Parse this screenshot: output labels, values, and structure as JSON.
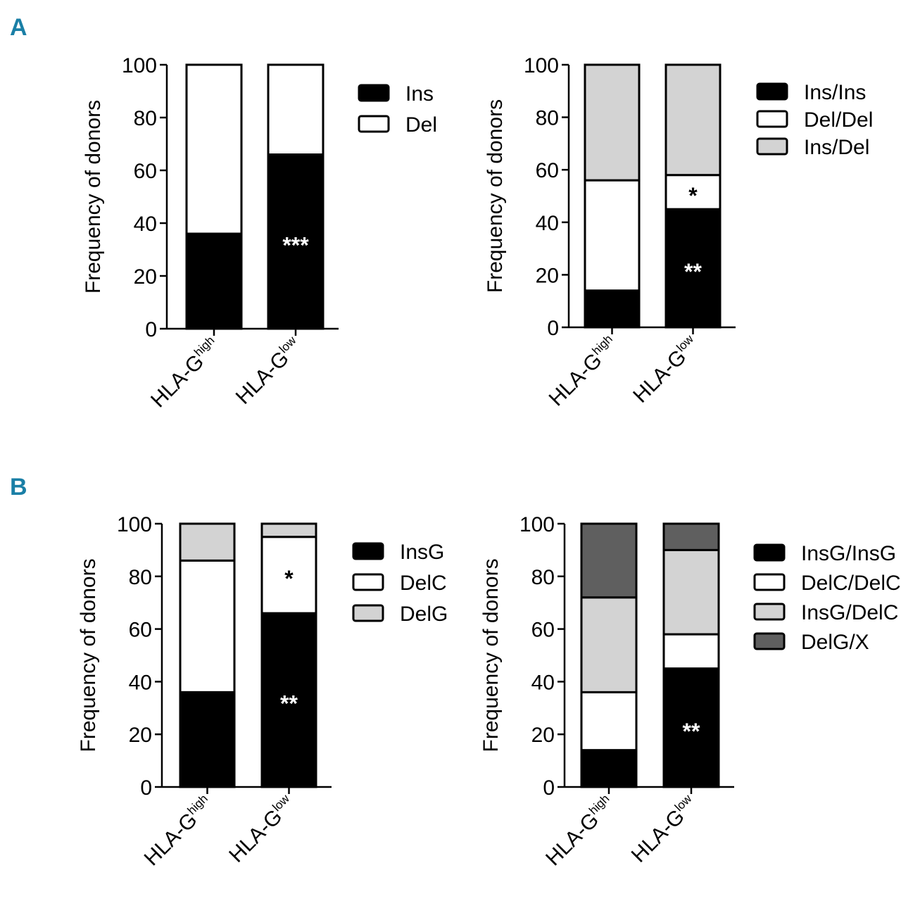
{
  "panels": [
    {
      "label": "A"
    },
    {
      "label": "B"
    }
  ],
  "colors": {
    "black": "#000000",
    "white": "#ffffff",
    "light_gray": "#d3d3d3",
    "dark_gray": "#5f5f5f",
    "panel_label": "#1a7fa6"
  },
  "chart_data": [
    {
      "type": "bar",
      "stacked": true,
      "panel": "A",
      "ylabel": "Frequency of donors",
      "ylim": [
        0,
        100
      ],
      "yticks": [
        0,
        20,
        40,
        60,
        80,
        100
      ],
      "categories": [
        {
          "base": "HLA-G",
          "sup": "high"
        },
        {
          "base": "HLA-G",
          "sup": "low"
        }
      ],
      "series": [
        {
          "name": "Ins",
          "color": "#000000",
          "values": [
            36,
            66
          ]
        },
        {
          "name": "Del",
          "color": "#ffffff",
          "values": [
            64,
            34
          ]
        }
      ],
      "legend_position": "right",
      "annotations": [
        {
          "category": 1,
          "series": 0,
          "text": "***",
          "color": "#ffffff"
        }
      ]
    },
    {
      "type": "bar",
      "stacked": true,
      "panel": "A",
      "ylabel": "Frequency of donors",
      "ylim": [
        0,
        100
      ],
      "yticks": [
        0,
        20,
        40,
        60,
        80,
        100
      ],
      "categories": [
        {
          "base": "HLA-G",
          "sup": "high"
        },
        {
          "base": "HLA-G",
          "sup": "low"
        }
      ],
      "series": [
        {
          "name": "Ins/Ins",
          "color": "#000000",
          "values": [
            14,
            45
          ]
        },
        {
          "name": "Del/Del",
          "color": "#ffffff",
          "values": [
            42,
            13
          ]
        },
        {
          "name": "Ins/Del",
          "color": "#d3d3d3",
          "values": [
            44,
            42
          ]
        }
      ],
      "legend_position": "right",
      "annotations": [
        {
          "category": 1,
          "series": 0,
          "text": "**",
          "color": "#ffffff"
        },
        {
          "category": 1,
          "series": 1,
          "text": "*",
          "color": "#000000"
        }
      ]
    },
    {
      "type": "bar",
      "stacked": true,
      "panel": "B",
      "ylabel": "Frequency of donors",
      "ylim": [
        0,
        100
      ],
      "yticks": [
        0,
        20,
        40,
        60,
        80,
        100
      ],
      "categories": [
        {
          "base": "HLA-G",
          "sup": "high"
        },
        {
          "base": "HLA-G",
          "sup": "low"
        }
      ],
      "series": [
        {
          "name": "InsG",
          "color": "#000000",
          "values": [
            36,
            66
          ]
        },
        {
          "name": "DelC",
          "color": "#ffffff",
          "values": [
            50,
            29
          ]
        },
        {
          "name": "DelG",
          "color": "#d3d3d3",
          "values": [
            14,
            5
          ]
        }
      ],
      "legend_position": "right",
      "annotations": [
        {
          "category": 1,
          "series": 0,
          "text": "**",
          "color": "#ffffff"
        },
        {
          "category": 1,
          "series": 1,
          "text": "*",
          "color": "#000000"
        }
      ]
    },
    {
      "type": "bar",
      "stacked": true,
      "panel": "B",
      "ylabel": "Frequency of donors",
      "ylim": [
        0,
        100
      ],
      "yticks": [
        0,
        20,
        40,
        60,
        80,
        100
      ],
      "categories": [
        {
          "base": "HLA-G",
          "sup": "high"
        },
        {
          "base": "HLA-G",
          "sup": "low"
        }
      ],
      "series": [
        {
          "name": "InsG/InsG",
          "color": "#000000",
          "values": [
            14,
            45
          ]
        },
        {
          "name": "DelC/DelC",
          "color": "#ffffff",
          "values": [
            22,
            13
          ]
        },
        {
          "name": "InsG/DelC",
          "color": "#d3d3d3",
          "values": [
            36,
            32
          ]
        },
        {
          "name": "DelG/X",
          "color": "#5f5f5f",
          "values": [
            28,
            10
          ]
        }
      ],
      "legend_position": "right",
      "annotations": [
        {
          "category": 1,
          "series": 0,
          "text": "**",
          "color": "#ffffff"
        }
      ]
    }
  ]
}
